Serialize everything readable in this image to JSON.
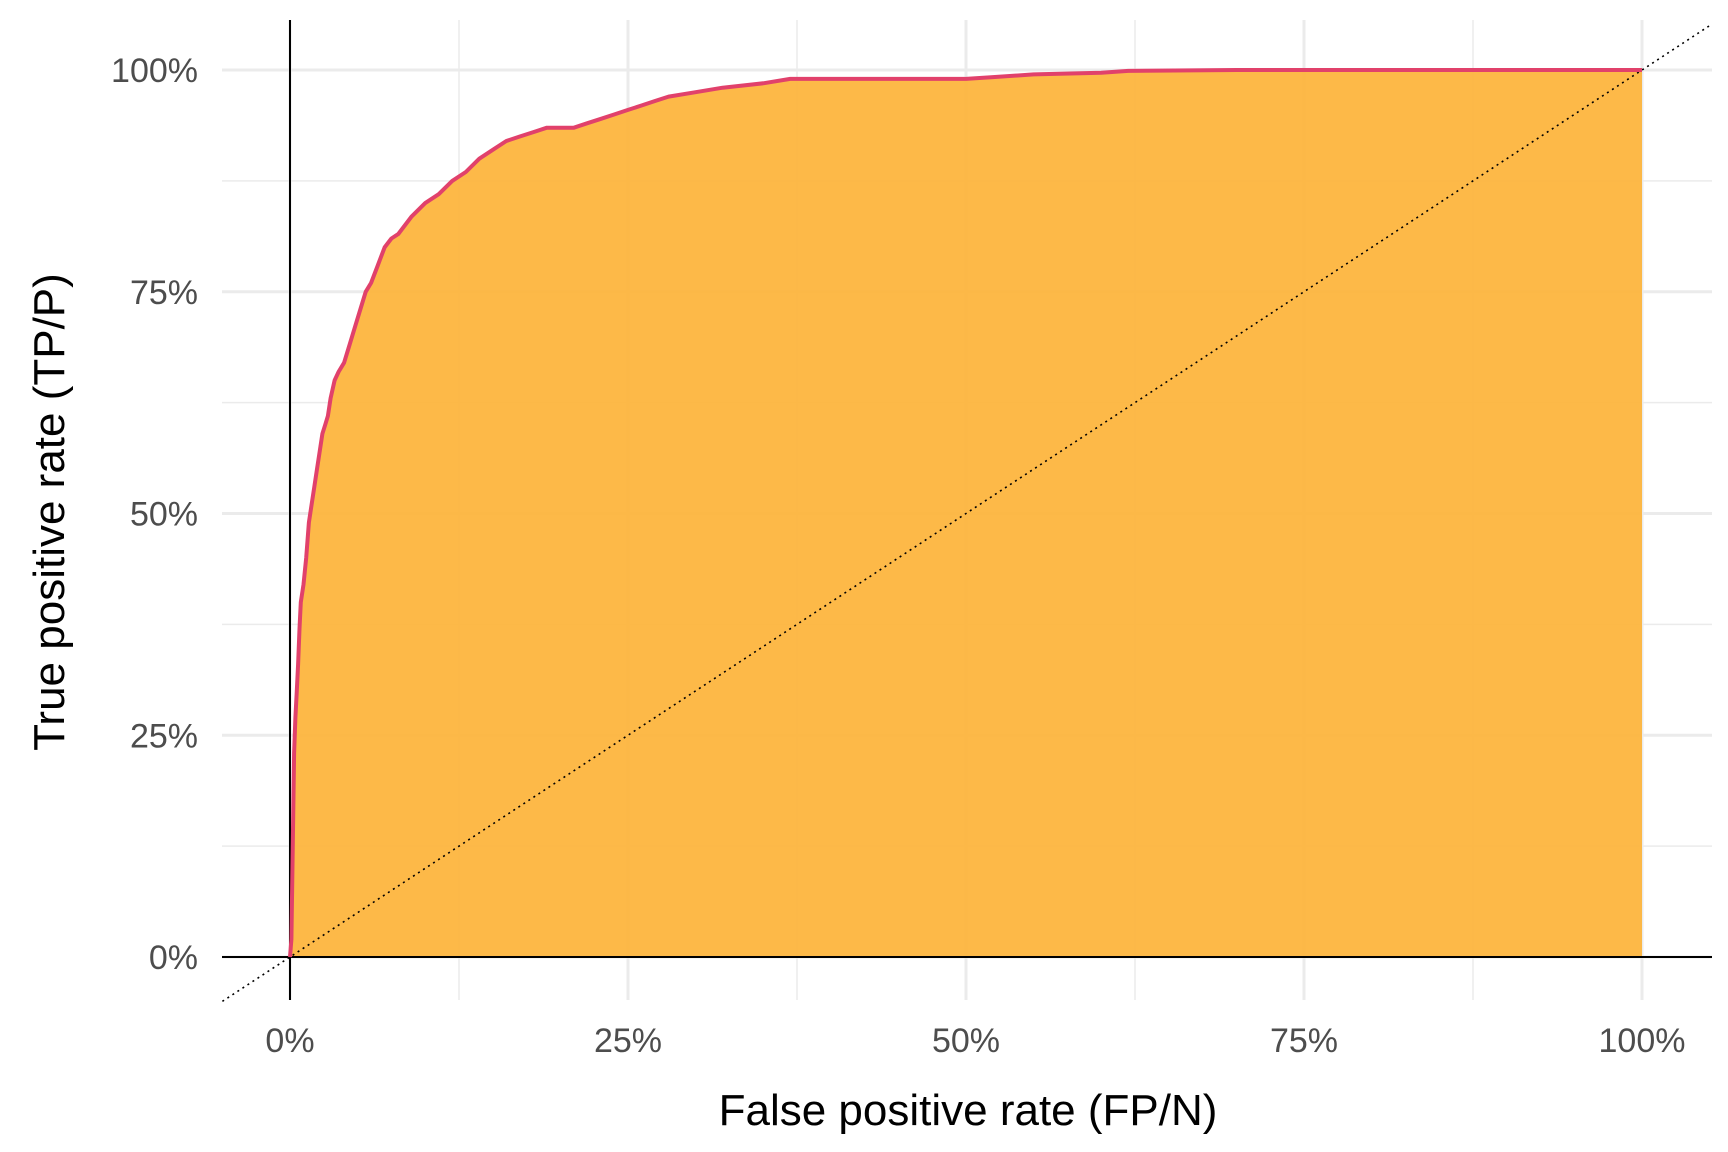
{
  "chart_data": {
    "type": "area",
    "title": "",
    "xlabel": "False positive rate (FP/N)",
    "ylabel": "True positive rate (TP/P)",
    "xlim": [
      0,
      1
    ],
    "ylim": [
      0,
      1
    ],
    "x_ticks": [
      0,
      0.25,
      0.5,
      0.75,
      1
    ],
    "x_tick_labels": [
      "0%",
      "25%",
      "50%",
      "75%",
      "100%"
    ],
    "y_ticks": [
      0,
      0.25,
      0.5,
      0.75,
      1
    ],
    "y_tick_labels": [
      "0%",
      "25%",
      "50%",
      "75%",
      "100%"
    ],
    "grid": true,
    "reference_line": "diagonal dotted y = x",
    "colors": {
      "area_fill": "#FDB53E",
      "curve": "#E1416B",
      "grid": "#ebebeb",
      "axis": "#000000"
    },
    "series": [
      {
        "x": [
          0,
          0.001,
          0.002,
          0.003,
          0.004,
          0.005,
          0.006,
          0.007,
          0.008,
          0.01,
          0.012,
          0.014,
          0.016,
          0.018,
          0.02,
          0.022,
          0.024,
          0.026,
          0.028,
          0.03,
          0.033,
          0.036,
          0.04,
          0.044,
          0.048,
          0.052,
          0.056,
          0.06,
          0.065,
          0.07,
          0.075,
          0.08,
          0.09,
          0.1,
          0.11,
          0.12,
          0.13,
          0.14,
          0.15,
          0.16,
          0.17,
          0.18,
          0.19,
          0.2,
          0.21,
          0.22,
          0.23,
          0.24,
          0.25,
          0.26,
          0.27,
          0.28,
          0.3,
          0.32,
          0.35,
          0.37,
          0.4,
          0.45,
          0.5,
          0.52,
          0.55,
          0.6,
          0.62,
          0.7,
          0.8,
          0.9,
          1.0
        ],
        "y": [
          0,
          0.02,
          0.12,
          0.23,
          0.27,
          0.3,
          0.33,
          0.37,
          0.4,
          0.42,
          0.45,
          0.49,
          0.51,
          0.53,
          0.55,
          0.57,
          0.59,
          0.6,
          0.61,
          0.63,
          0.65,
          0.66,
          0.67,
          0.69,
          0.71,
          0.73,
          0.75,
          0.76,
          0.78,
          0.8,
          0.81,
          0.815,
          0.835,
          0.85,
          0.86,
          0.875,
          0.885,
          0.9,
          0.91,
          0.92,
          0.925,
          0.93,
          0.935,
          0.935,
          0.935,
          0.94,
          0.945,
          0.95,
          0.955,
          0.96,
          0.965,
          0.97,
          0.975,
          0.98,
          0.985,
          0.99,
          0.99,
          0.99,
          0.99,
          0.992,
          0.995,
          0.997,
          0.999,
          1.0,
          1.0,
          1.0,
          1.0
        ]
      }
    ]
  }
}
